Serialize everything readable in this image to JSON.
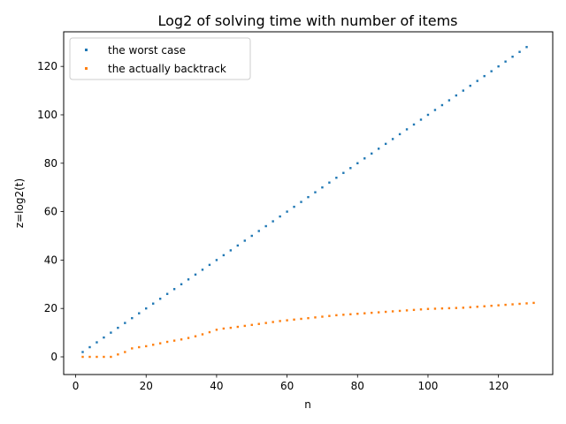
{
  "chart_data": {
    "type": "scatter",
    "title": "Log2 of solving time with number of items",
    "xlabel": "n",
    "ylabel": "z=log2(t)",
    "xlim": [
      -3.4,
      135.4
    ],
    "ylim": [
      -7.3,
      134.3
    ],
    "xticks": [
      0,
      20,
      40,
      60,
      80,
      100,
      120
    ],
    "yticks": [
      0,
      20,
      40,
      60,
      80,
      100,
      120
    ],
    "grid": false,
    "legend": "top-left",
    "series": [
      {
        "name": "the worst case",
        "color": "#1f77b4",
        "x": [
          2,
          4,
          6,
          8,
          10,
          12,
          14,
          16,
          18,
          20,
          22,
          24,
          26,
          28,
          30,
          32,
          34,
          36,
          38,
          40,
          42,
          44,
          46,
          48,
          50,
          52,
          54,
          56,
          58,
          60,
          62,
          64,
          66,
          68,
          70,
          72,
          74,
          76,
          78,
          80,
          82,
          84,
          86,
          88,
          90,
          92,
          94,
          96,
          98,
          100,
          102,
          104,
          106,
          108,
          110,
          112,
          114,
          116,
          118,
          120,
          122,
          124,
          126,
          128
        ],
        "y": [
          2,
          4,
          6,
          8,
          10,
          12,
          14,
          16,
          18,
          20,
          22,
          24,
          26,
          28,
          30,
          32,
          34,
          36,
          38,
          40,
          42,
          44,
          46,
          48,
          50,
          52,
          54,
          56,
          58,
          60,
          62,
          64,
          66,
          68,
          70,
          72,
          74,
          76,
          78,
          80,
          82,
          84,
          86,
          88,
          90,
          92,
          94,
          96,
          98,
          100,
          102,
          104,
          106,
          108,
          110,
          112,
          114,
          116,
          118,
          120,
          122,
          124,
          126,
          128
        ]
      },
      {
        "name": "the actually backtrack",
        "color": "#ff7f0e",
        "x": [
          2,
          4,
          6,
          8,
          10,
          12,
          14,
          16,
          18,
          20,
          22,
          24,
          26,
          28,
          30,
          32,
          34,
          36,
          38,
          40,
          42,
          44,
          46,
          48,
          50,
          52,
          54,
          56,
          58,
          60,
          62,
          64,
          66,
          68,
          70,
          72,
          74,
          76,
          78,
          80,
          82,
          84,
          86,
          88,
          90,
          92,
          94,
          96,
          98,
          100,
          102,
          104,
          106,
          108,
          110,
          112,
          114,
          116,
          118,
          120,
          122,
          124,
          126,
          128,
          130
        ],
        "y": [
          0,
          0,
          0,
          0,
          0,
          1,
          2,
          3.5,
          4,
          4.4,
          5,
          5.6,
          6.2,
          6.7,
          7.2,
          7.8,
          8.5,
          9.3,
          10.2,
          11.2,
          11.7,
          12,
          12.4,
          12.8,
          13.2,
          13.6,
          14,
          14.4,
          14.8,
          15.1,
          15.4,
          15.7,
          16,
          16.3,
          16.6,
          16.9,
          17.2,
          17.4,
          17.6,
          17.8,
          18,
          18.2,
          18.4,
          18.6,
          18.8,
          19,
          19.2,
          19.4,
          19.6,
          19.8,
          19.9,
          20,
          20.1,
          20.2,
          20.3,
          20.5,
          20.7,
          20.9,
          21.1,
          21.3,
          21.5,
          21.7,
          21.9,
          22.1,
          22.3
        ]
      }
    ]
  }
}
